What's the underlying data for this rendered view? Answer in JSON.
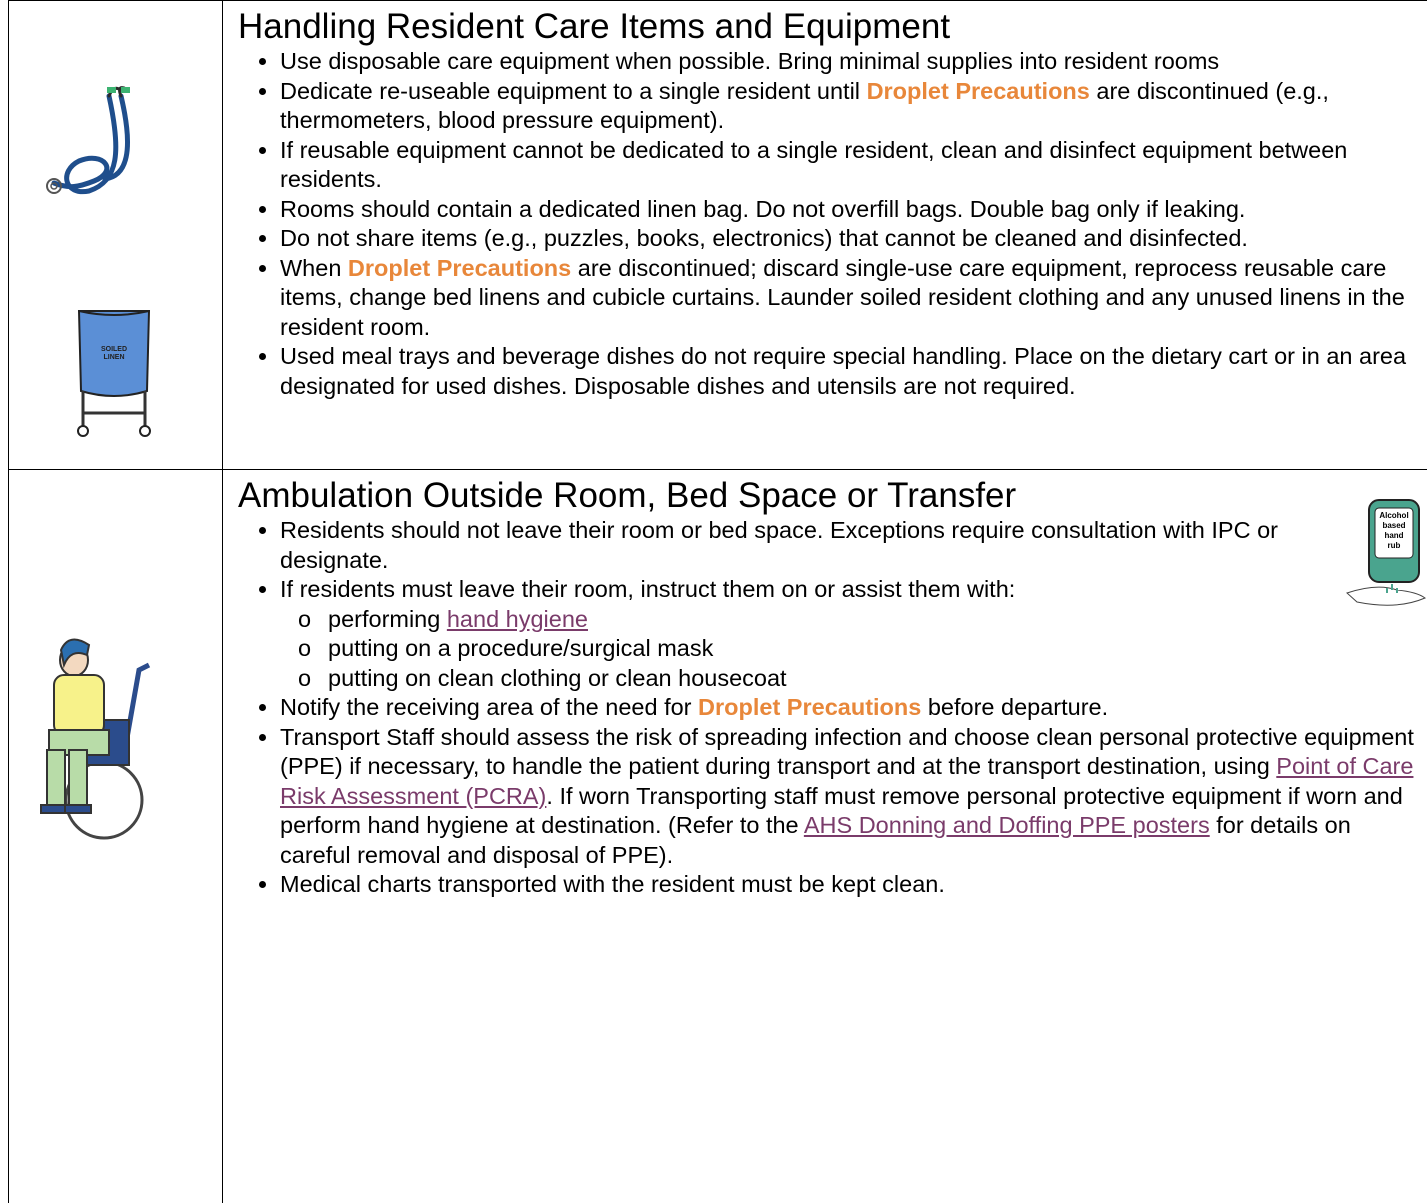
{
  "sections": [
    {
      "title": "Handling Resident Care Items and Equipment",
      "icon_labels": [
        "SOILED",
        "LINEN"
      ],
      "bullets": [
        {
          "parts": [
            "Use disposable care equipment when possible. Bring minimal supplies into resident rooms"
          ]
        },
        {
          "parts": [
            "Dedicate re-useable equipment to a single resident until ",
            {
              "strong": "Droplet Precautions"
            },
            " are discontinued (e.g., thermometers, blood pressure equipment)."
          ]
        },
        {
          "parts": [
            "If reusable equipment cannot be dedicated to a single resident, clean and disinfect equipment between residents."
          ]
        },
        {
          "parts": [
            "Rooms should contain a dedicated linen bag. Do not overfill bags. Double bag only if leaking."
          ]
        },
        {
          "parts": [
            "Do not share items (e.g., puzzles, books, electronics) that cannot be cleaned and disinfected."
          ]
        },
        {
          "parts": [
            "When ",
            {
              "strong": "Droplet Precautions"
            },
            " are discontinued; discard single-use care equipment, reprocess reusable care items, change bed linens and cubicle curtains. Launder soiled resident clothing and any unused linens in the resident room."
          ]
        },
        {
          "parts": [
            "Used meal trays and beverage dishes do not require special handling. Place on the dietary cart or in an area designated for used dishes. Disposable dishes and utensils are not required."
          ]
        }
      ]
    },
    {
      "title": "Ambulation Outside Room, Bed Space or Transfer",
      "icon_labels": [
        "Alcohol",
        "based",
        "hand",
        "rub"
      ],
      "bullets": [
        {
          "parts": [
            "Residents should not leave their room or bed space. Exceptions require consultation with IPC or designate."
          ]
        },
        {
          "parts": [
            "If residents must leave their room, instruct them on or assist them with:"
          ],
          "sub": [
            [
              "performing ",
              {
                "link": "hand hygiene"
              }
            ],
            [
              "putting on a procedure/surgical mask"
            ],
            [
              "putting on clean clothing or clean housecoat"
            ]
          ]
        },
        {
          "parts": [
            "Notify the receiving area of the need for ",
            {
              "strong": "Droplet Precautions"
            },
            " before departure."
          ]
        },
        {
          "parts": [
            "Transport Staff should assess the risk of spreading infection and choose clean personal protective equipment (PPE) if necessary, to handle the patient during transport and at the transport destination, using ",
            {
              "link": "Point of Care Risk Assessment (PCRA)"
            },
            ". If worn Transporting staff must remove personal protective equipment if worn and perform hand hygiene at destination. (Refer to the ",
            {
              "link": "AHS Donning and Doffing PPE posters"
            },
            " for details on careful removal and disposal of PPE)."
          ]
        },
        {
          "parts": [
            "Medical charts transported with the resident must be kept clean."
          ]
        }
      ]
    }
  ]
}
